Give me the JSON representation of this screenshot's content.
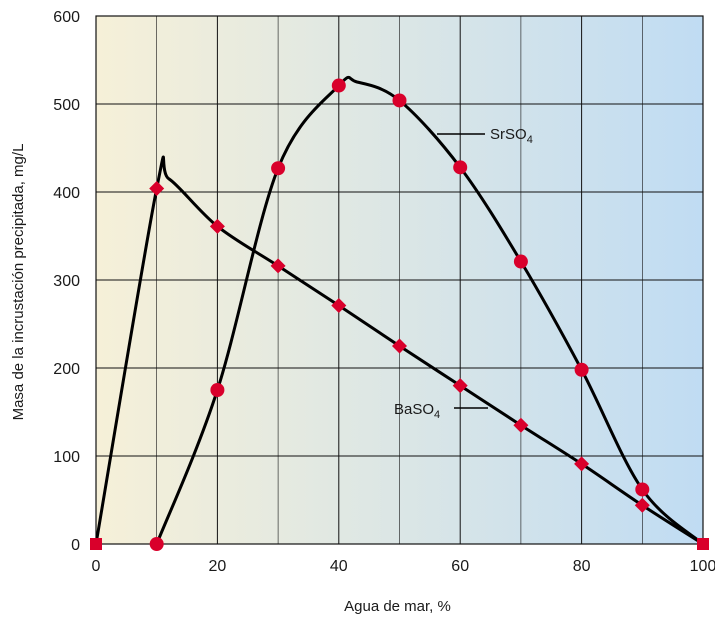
{
  "chart_data": {
    "type": "line",
    "title": "",
    "xlabel": "Agua de mar, %",
    "ylabel": "Masa de la incrustación precipitada, mg/L",
    "xlim": [
      0,
      100
    ],
    "ylim": [
      0,
      600
    ],
    "x_ticks": [
      0,
      20,
      40,
      60,
      80,
      100
    ],
    "y_ticks": [
      0,
      100,
      200,
      300,
      400,
      500,
      600
    ],
    "grid": true,
    "background_gradient": [
      "#f6f0d8",
      "#c0dcf3"
    ],
    "series": [
      {
        "name": "SrSO4",
        "label_main": "SrSO",
        "label_sub": "4",
        "marker": "circle",
        "color": "#d9002b",
        "x": [
          10,
          20,
          30,
          40,
          50,
          60,
          70,
          80,
          90,
          100
        ],
        "y": [
          0,
          175,
          427,
          521,
          504,
          428,
          321,
          198,
          62,
          0
        ],
        "curve_peak": {
          "x": 43,
          "y": 525
        }
      },
      {
        "name": "BaSO4",
        "label_main": "BaSO",
        "label_sub": "4",
        "marker": "diamond",
        "color": "#d9002b",
        "x": [
          0,
          10,
          20,
          30,
          40,
          50,
          60,
          70,
          80,
          90,
          100
        ],
        "y": [
          0,
          404,
          361,
          316,
          271,
          225,
          180,
          135,
          91,
          44,
          0
        ],
        "curve_peak": {
          "x": 12,
          "y": 415
        }
      }
    ]
  }
}
